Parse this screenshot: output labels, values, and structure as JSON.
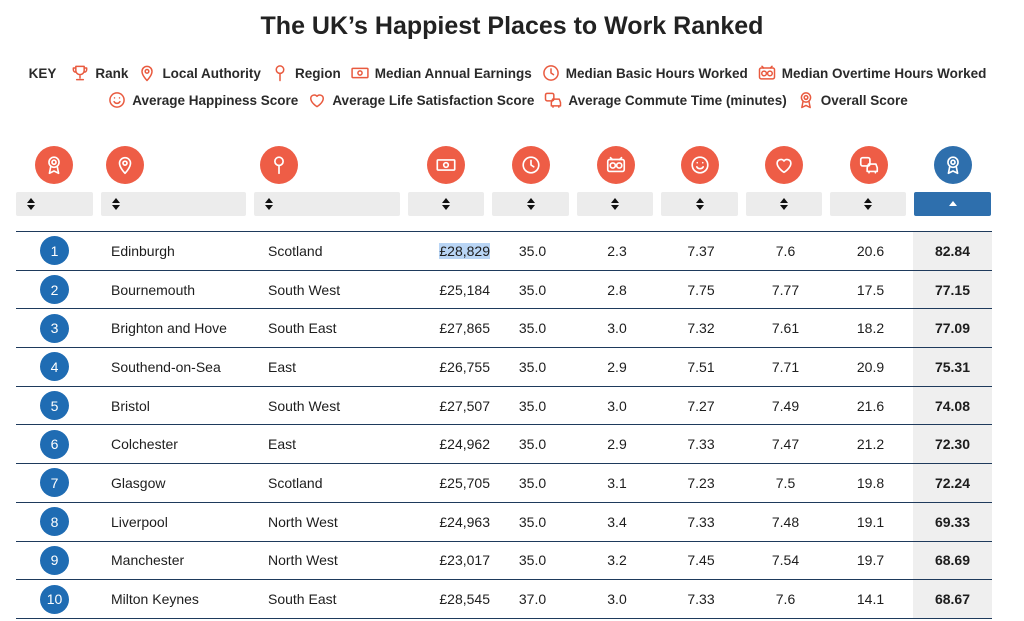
{
  "title": "The UK’s Happiest Places to Work Ranked",
  "key": {
    "label": "KEY",
    "items_row1": [
      {
        "icon": "trophy-icon",
        "label": "Rank"
      },
      {
        "icon": "map-pin-icon",
        "label": "Local Authority"
      },
      {
        "icon": "region-pin-icon",
        "label": "Region"
      },
      {
        "icon": "banknote-icon",
        "label": "Median Annual Earnings"
      },
      {
        "icon": "clock-icon",
        "label": "Median Basic Hours Worked"
      },
      {
        "icon": "overtime-clock-icon",
        "label": "Median Overtime Hours Worked"
      }
    ],
    "items_row2": [
      {
        "icon": "smiley-icon",
        "label": "Average Happiness Score"
      },
      {
        "icon": "heart-icon",
        "label": "Average Life Satisfaction Score"
      },
      {
        "icon": "commute-icon",
        "label": "Average Commute Time (minutes)"
      },
      {
        "icon": "award-icon",
        "label": "Overall Score"
      }
    ]
  },
  "colors": {
    "accent": "#ee5d46",
    "active": "#2e6fad",
    "rank_badge": "#1f6cb3",
    "row_rule": "#1e3a5c"
  },
  "sort": {
    "active_column": "overall_score",
    "direction": "descending"
  },
  "rows": [
    {
      "rank": "1",
      "authority": "Edinburgh",
      "region": "Scotland",
      "earnings": "£28,829",
      "basic_hours": "35.0",
      "overtime": "2.3",
      "happiness": "7.37",
      "life_sat": "7.6",
      "commute": "20.6",
      "score": "82.84"
    },
    {
      "rank": "2",
      "authority": "Bournemouth",
      "region": "South West",
      "earnings": "£25,184",
      "basic_hours": "35.0",
      "overtime": "2.8",
      "happiness": "7.75",
      "life_sat": "7.77",
      "commute": "17.5",
      "score": "77.15"
    },
    {
      "rank": "3",
      "authority": "Brighton and Hove",
      "region": "South East",
      "earnings": "£27,865",
      "basic_hours": "35.0",
      "overtime": "3.0",
      "happiness": "7.32",
      "life_sat": "7.61",
      "commute": "18.2",
      "score": "77.09"
    },
    {
      "rank": "4",
      "authority": "Southend-on-Sea",
      "region": "East",
      "earnings": "£26,755",
      "basic_hours": "35.0",
      "overtime": "2.9",
      "happiness": "7.51",
      "life_sat": "7.71",
      "commute": "20.9",
      "score": "75.31"
    },
    {
      "rank": "5",
      "authority": "Bristol",
      "region": "South West",
      "earnings": "£27,507",
      "basic_hours": "35.0",
      "overtime": "3.0",
      "happiness": "7.27",
      "life_sat": "7.49",
      "commute": "21.6",
      "score": "74.08"
    },
    {
      "rank": "6",
      "authority": "Colchester",
      "region": "East",
      "earnings": "£24,962",
      "basic_hours": "35.0",
      "overtime": "2.9",
      "happiness": "7.33",
      "life_sat": "7.47",
      "commute": "21.2",
      "score": "72.30"
    },
    {
      "rank": "7",
      "authority": "Glasgow",
      "region": "Scotland",
      "earnings": "£25,705",
      "basic_hours": "35.0",
      "overtime": "3.1",
      "happiness": "7.23",
      "life_sat": "7.5",
      "commute": "19.8",
      "score": "72.24"
    },
    {
      "rank": "8",
      "authority": "Liverpool",
      "region": "North West",
      "earnings": "£24,963",
      "basic_hours": "35.0",
      "overtime": "3.4",
      "happiness": "7.33",
      "life_sat": "7.48",
      "commute": "19.1",
      "score": "69.33"
    },
    {
      "rank": "9",
      "authority": "Manchester",
      "region": "North West",
      "earnings": "£23,017",
      "basic_hours": "35.0",
      "overtime": "3.2",
      "happiness": "7.45",
      "life_sat": "7.54",
      "commute": "19.7",
      "score": "68.69"
    },
    {
      "rank": "10",
      "authority": "Milton Keynes",
      "region": "South East",
      "earnings": "£28,545",
      "basic_hours": "37.0",
      "overtime": "3.0",
      "happiness": "7.33",
      "life_sat": "7.6",
      "commute": "14.1",
      "score": "68.67"
    }
  ]
}
